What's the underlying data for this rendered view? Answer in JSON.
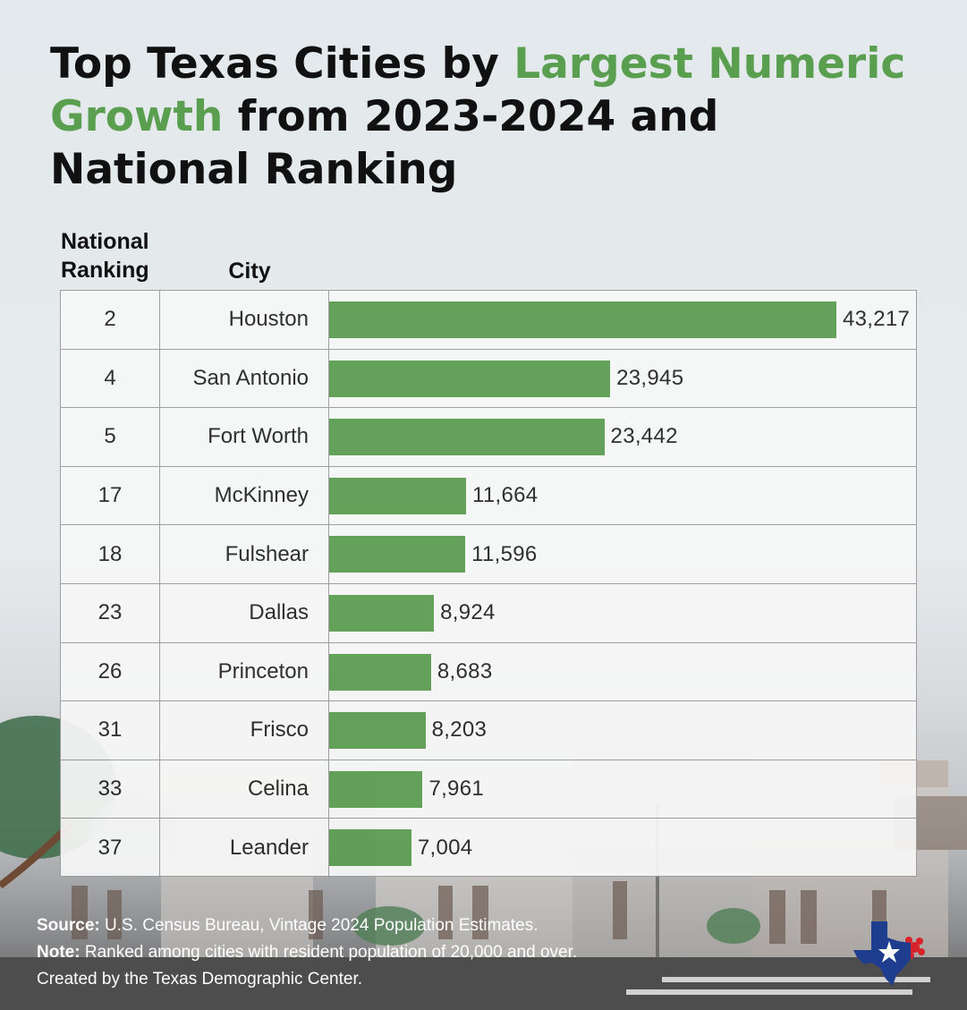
{
  "title": {
    "part1": "Top Texas Cities by ",
    "highlight": "Largest Numeric Growth",
    "part2": " from 2023-2024 and National Ranking"
  },
  "headers": {
    "ranking": "National Ranking",
    "city": "City"
  },
  "colors": {
    "bar": "#5b9d51",
    "highlight": "#5a9e50",
    "text": "#111111"
  },
  "chart_data": {
    "type": "bar",
    "orientation": "horizontal",
    "title": "Top Texas Cities by Largest Numeric Growth from 2023-2024 and National Ranking",
    "categories": [
      "Houston",
      "San Antonio",
      "Fort Worth",
      "McKinney",
      "Fulshear",
      "Dallas",
      "Princeton",
      "Frisco",
      "Celina",
      "Leander"
    ],
    "ranks": [
      "2",
      "4",
      "5",
      "17",
      "18",
      "23",
      "26",
      "31",
      "33",
      "37"
    ],
    "values": [
      43217,
      23945,
      23442,
      11664,
      11596,
      8924,
      8683,
      8203,
      7961,
      7004
    ],
    "value_labels": [
      "43,217",
      "23,945",
      "23,442",
      "11,664",
      "11,596",
      "8,924",
      "8,683",
      "8,203",
      "7,961",
      "7,004"
    ],
    "xlim": [
      0,
      43217
    ],
    "grid": false
  },
  "footer": {
    "source_label": "Source:",
    "source_text": " U.S. Census Bureau, Vintage 2024 Population Estimates.",
    "note_label": "Note:",
    "note_text": "  Ranked among cities with resident population of 20,000 and over.",
    "created": "Created by the Texas Demographic Center."
  },
  "logo_icon": "texas-star-icon"
}
